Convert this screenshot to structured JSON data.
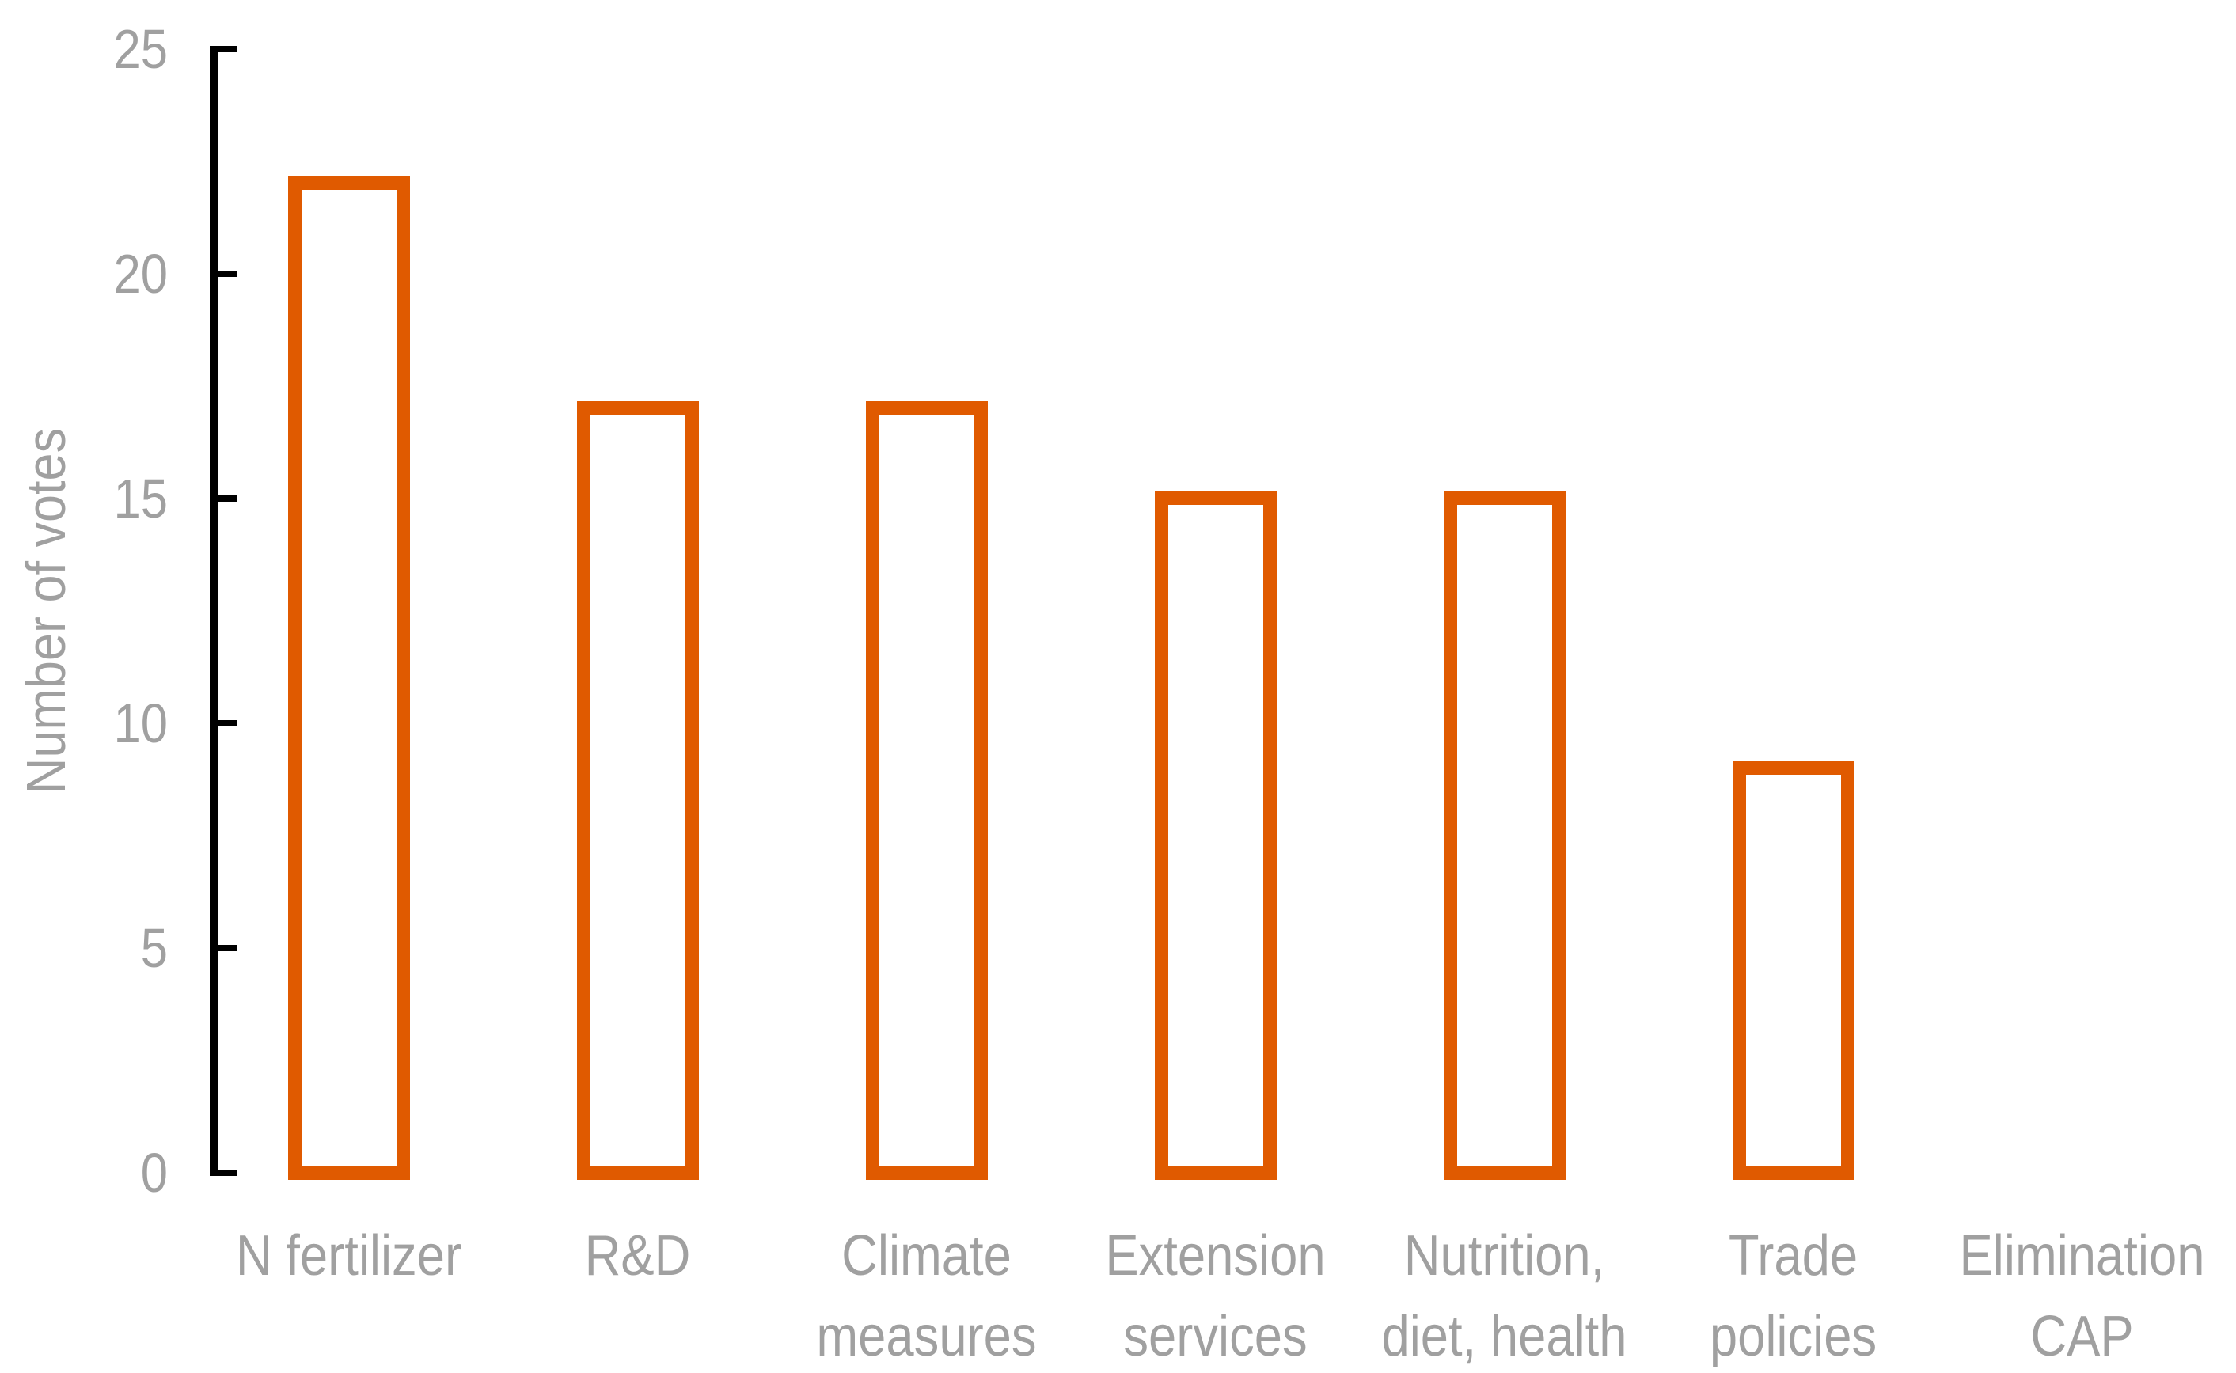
{
  "chart_data": {
    "type": "bar",
    "title": "",
    "xlabel": "",
    "ylabel": "Number of votes",
    "categories": [
      "N fertilizer",
      "R&D",
      "Climate measures",
      "Extension services",
      "Nutrition, diet, health",
      "Trade policies",
      "Elimination CAP"
    ],
    "category_lines": [
      [
        "N fertilizer"
      ],
      [
        "R&D"
      ],
      [
        "Climate",
        "measures"
      ],
      [
        "Extension",
        "services"
      ],
      [
        "Nutrition,",
        "diet, health"
      ],
      [
        "Trade",
        "policies"
      ],
      [
        "Elimination",
        "CAP"
      ]
    ],
    "values": [
      22,
      17,
      17,
      15,
      15,
      9,
      0
    ],
    "ylim": [
      0,
      25
    ],
    "yticks": [
      25,
      20,
      15,
      10,
      5,
      0
    ],
    "grid": false,
    "legend_position": "none",
    "colors": {
      "bar_outline": "#E05A00",
      "bar_fill": "#FFFFFF",
      "axis": "#000000",
      "labels": "#A0A0A0",
      "background": "#FFFFFF"
    }
  }
}
